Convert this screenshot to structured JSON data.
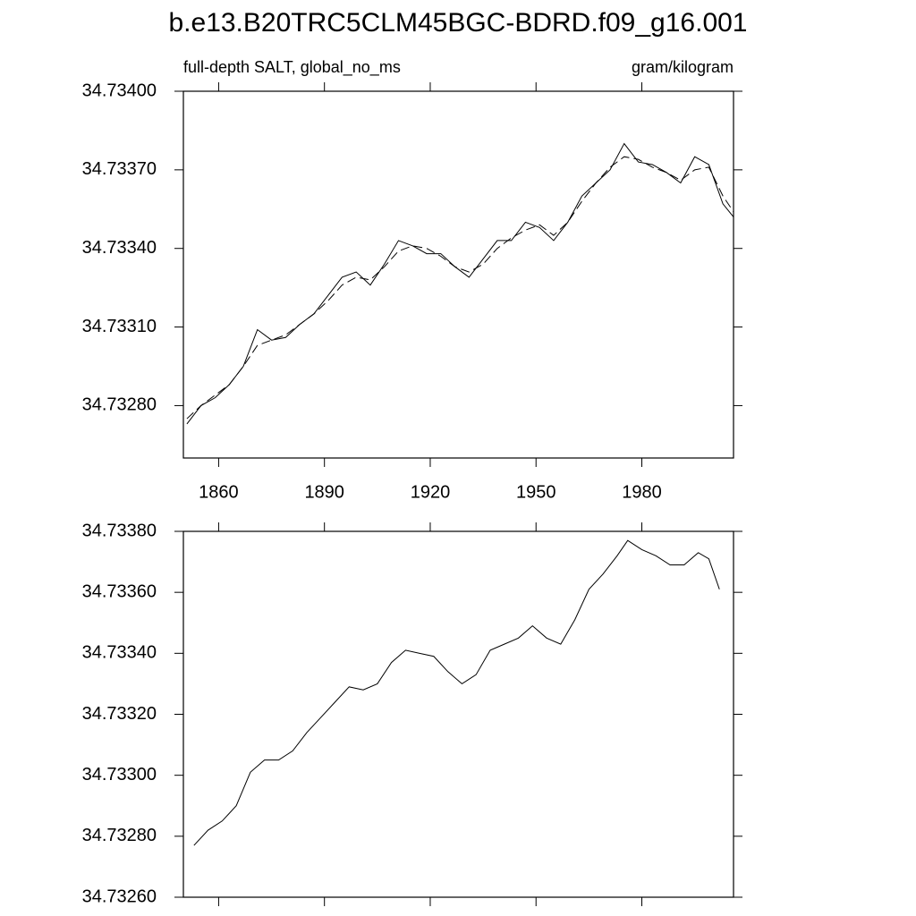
{
  "chart_data": [
    {
      "type": "line",
      "title": "b.e13.B20TRC5CLM45BGC-BDRD.f09_g16.001",
      "left_string": "full-depth SALT, global_no_ms",
      "right_string": "gram/kilogram",
      "x": [
        1851,
        1855,
        1859,
        1863,
        1867,
        1871,
        1875,
        1879,
        1883,
        1887,
        1891,
        1895,
        1899,
        1903,
        1907,
        1911,
        1915,
        1919,
        1923,
        1927,
        1931,
        1935,
        1939,
        1943,
        1947,
        1951,
        1955,
        1959,
        1963,
        1967,
        1971,
        1975,
        1979,
        1983,
        1987,
        1991,
        1995,
        1999,
        2003,
        2006
      ],
      "series": [
        {
          "color": "#000000",
          "dashed": false,
          "values": [
            34.73273,
            34.7328,
            34.73283,
            34.73288,
            34.73295,
            34.73309,
            34.73305,
            34.73306,
            34.73311,
            34.73315,
            34.73322,
            34.73329,
            34.73331,
            34.73326,
            34.73334,
            34.73343,
            34.73341,
            34.73338,
            34.73338,
            34.73333,
            34.73329,
            34.73336,
            34.73343,
            34.73343,
            34.7335,
            34.73348,
            34.73343,
            34.7335,
            34.7336,
            34.73365,
            34.7337,
            34.7338,
            34.73373,
            34.73372,
            34.73369,
            34.73365,
            34.73375,
            34.73372,
            34.73357,
            34.73352
          ]
        },
        {
          "color": "#000000",
          "dashed": true,
          "values": [
            34.73275,
            34.7328,
            34.73284,
            34.73288,
            34.73295,
            34.73303,
            34.73305,
            34.73307,
            34.73311,
            34.73315,
            34.7332,
            34.73326,
            34.73329,
            34.73328,
            34.73333,
            34.73339,
            34.73341,
            34.7334,
            34.73337,
            34.73333,
            34.73331,
            34.73334,
            34.7334,
            34.73344,
            34.73347,
            34.73349,
            34.73345,
            34.7335,
            34.73358,
            34.73365,
            34.73371,
            34.73375,
            34.73374,
            34.73371,
            34.73369,
            34.73366,
            34.7337,
            34.73371,
            34.7336,
            34.73354
          ]
        }
      ],
      "xlim": [
        1850,
        2006
      ],
      "xticks": [
        1860,
        1890,
        1920,
        1950,
        1980
      ],
      "show_xtick_labels": true,
      "ylim": [
        34.7326,
        34.734
      ],
      "yticks": [
        {
          "value": 34.7328,
          "label": "34.73280"
        },
        {
          "value": 34.7331,
          "label": "34.73310"
        },
        {
          "value": 34.7334,
          "label": "34.73340"
        },
        {
          "value": 34.7337,
          "label": "34.73370"
        },
        {
          "value": 34.734,
          "label": "34.73400"
        }
      ]
    },
    {
      "type": "line",
      "x": [
        1853,
        1857,
        1861,
        1865,
        1869,
        1873,
        1877,
        1881,
        1885,
        1889,
        1893,
        1897,
        1901,
        1905,
        1909,
        1913,
        1917,
        1921,
        1925,
        1929,
        1933,
        1937,
        1941,
        1945,
        1949,
        1953,
        1957,
        1961,
        1965,
        1969,
        1973,
        1976,
        1980,
        1984,
        1988,
        1992,
        1996,
        1999,
        2002
      ],
      "series": [
        {
          "color": "#000000",
          "dashed": false,
          "values": [
            34.73277,
            34.73282,
            34.73285,
            34.7329,
            34.73301,
            34.73305,
            34.73305,
            34.73308,
            34.73314,
            34.73319,
            34.73324,
            34.73329,
            34.73328,
            34.7333,
            34.73337,
            34.73341,
            34.7334,
            34.73339,
            34.73334,
            34.7333,
            34.73333,
            34.73341,
            34.73343,
            34.73345,
            34.73349,
            34.73345,
            34.73343,
            34.73351,
            34.73361,
            34.73366,
            34.73372,
            34.73377,
            34.73374,
            34.73372,
            34.73369,
            34.73369,
            34.73373,
            34.73371,
            34.73361
          ]
        }
      ],
      "xlim": [
        1850,
        2006
      ],
      "xticks": [
        1860,
        1890,
        1920,
        1950,
        1980
      ],
      "show_xtick_labels": false,
      "ylim": [
        34.7326,
        34.7338
      ],
      "yticks": [
        {
          "value": 34.7326,
          "label": "34.73260"
        },
        {
          "value": 34.7328,
          "label": "34.73280"
        },
        {
          "value": 34.733,
          "label": "34.73300"
        },
        {
          "value": 34.7332,
          "label": "34.73320"
        },
        {
          "value": 34.7334,
          "label": "34.73340"
        },
        {
          "value": 34.7336,
          "label": "34.73360"
        },
        {
          "value": 34.7338,
          "label": "34.73380"
        }
      ]
    }
  ]
}
